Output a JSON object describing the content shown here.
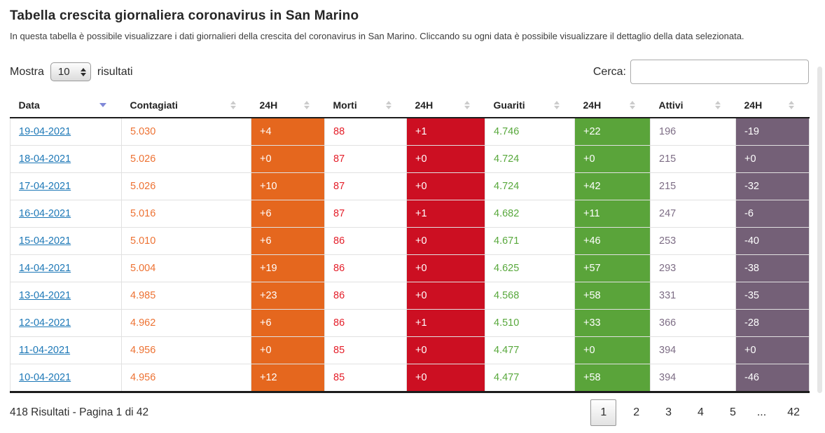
{
  "page": {
    "title": "Tabella crescita giornaliera coronavirus in San Marino",
    "subtitle": "In questa tabella è possibile visualizzare i dati giornalieri della crescita del coronavirus in San Marino. Cliccando su ogni data è possibile visualizzare il dettaglio della data selezionata."
  },
  "controls": {
    "show_label_before": "Mostra",
    "show_value": "10",
    "show_label_after": "risultati",
    "search_label": "Cerca:",
    "search_value": ""
  },
  "table": {
    "columns": [
      {
        "key": "date",
        "label": "Data",
        "sort": "desc"
      },
      {
        "key": "contagiati",
        "label": "Contagiati",
        "sort": "both"
      },
      {
        "key": "contagiati_24h",
        "label": "24H",
        "sort": "both"
      },
      {
        "key": "morti",
        "label": "Morti",
        "sort": "both"
      },
      {
        "key": "morti_24h",
        "label": "24H",
        "sort": "both"
      },
      {
        "key": "guariti",
        "label": "Guariti",
        "sort": "both"
      },
      {
        "key": "guariti_24h",
        "label": "24H",
        "sort": "both"
      },
      {
        "key": "attivi",
        "label": "Attivi",
        "sort": "both"
      },
      {
        "key": "attivi_24h",
        "label": "24H",
        "sort": "both"
      }
    ],
    "rows": [
      {
        "date": "19-04-2021",
        "contagiati": "5.030",
        "contagiati_24h": "+4",
        "morti": "88",
        "morti_24h": "+1",
        "guariti": "4.746",
        "guariti_24h": "+22",
        "attivi": "196",
        "attivi_24h": "-19"
      },
      {
        "date": "18-04-2021",
        "contagiati": "5.026",
        "contagiati_24h": "+0",
        "morti": "87",
        "morti_24h": "+0",
        "guariti": "4.724",
        "guariti_24h": "+0",
        "attivi": "215",
        "attivi_24h": "+0"
      },
      {
        "date": "17-04-2021",
        "contagiati": "5.026",
        "contagiati_24h": "+10",
        "morti": "87",
        "morti_24h": "+0",
        "guariti": "4.724",
        "guariti_24h": "+42",
        "attivi": "215",
        "attivi_24h": "-32"
      },
      {
        "date": "16-04-2021",
        "contagiati": "5.016",
        "contagiati_24h": "+6",
        "morti": "87",
        "morti_24h": "+1",
        "guariti": "4.682",
        "guariti_24h": "+11",
        "attivi": "247",
        "attivi_24h": "-6"
      },
      {
        "date": "15-04-2021",
        "contagiati": "5.010",
        "contagiati_24h": "+6",
        "morti": "86",
        "morti_24h": "+0",
        "guariti": "4.671",
        "guariti_24h": "+46",
        "attivi": "253",
        "attivi_24h": "-40"
      },
      {
        "date": "14-04-2021",
        "contagiati": "5.004",
        "contagiati_24h": "+19",
        "morti": "86",
        "morti_24h": "+0",
        "guariti": "4.625",
        "guariti_24h": "+57",
        "attivi": "293",
        "attivi_24h": "-38"
      },
      {
        "date": "13-04-2021",
        "contagiati": "4.985",
        "contagiati_24h": "+23",
        "morti": "86",
        "morti_24h": "+0",
        "guariti": "4.568",
        "guariti_24h": "+58",
        "attivi": "331",
        "attivi_24h": "-35"
      },
      {
        "date": "12-04-2021",
        "contagiati": "4.962",
        "contagiati_24h": "+6",
        "morti": "86",
        "morti_24h": "+1",
        "guariti": "4.510",
        "guariti_24h": "+33",
        "attivi": "366",
        "attivi_24h": "-28"
      },
      {
        "date": "11-04-2021",
        "contagiati": "4.956",
        "contagiati_24h": "+0",
        "morti": "85",
        "morti_24h": "+0",
        "guariti": "4.477",
        "guariti_24h": "+0",
        "attivi": "394",
        "attivi_24h": "+0"
      },
      {
        "date": "10-04-2021",
        "contagiati": "4.956",
        "contagiati_24h": "+12",
        "morti": "85",
        "morti_24h": "+0",
        "guariti": "4.477",
        "guariti_24h": "+58",
        "attivi": "394",
        "attivi_24h": "-46"
      }
    ]
  },
  "footer": {
    "results_text": "418 Risultati - Pagina 1 di 42",
    "pagination": [
      "1",
      "2",
      "3",
      "4",
      "5",
      "...",
      "42"
    ],
    "active_page": "1"
  },
  "colors": {
    "orange_bg": "#e5671e",
    "orange_text": "#ed7233",
    "red_bg": "#cc0f22",
    "red_text": "#e41e29",
    "green_bg": "#5aa43a",
    "green_text": "#58a83c",
    "purple_bg": "#746077",
    "purple_text": "#7d6d85",
    "link": "#1d78b7"
  }
}
